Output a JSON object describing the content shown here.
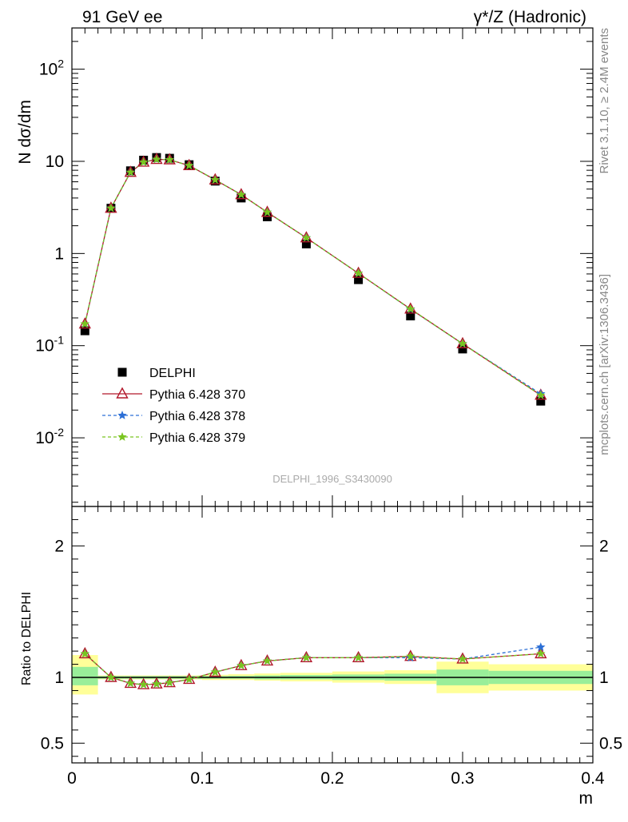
{
  "header": {
    "left": "91 GeV ee",
    "right": "γ*/Z (Hadronic)"
  },
  "side_text": {
    "upper": "Rivet 3.1.10, ≥ 2.4M events",
    "lower": "mcplots.cern.ch [arXiv:1306.3436]"
  },
  "watermark": "DELPHI_1996_S3430090",
  "chart_data": [
    {
      "type": "scatter",
      "panel": "main",
      "ylabel": "N dσ/dm",
      "yscale": "log",
      "xlim": [
        0,
        0.4
      ],
      "ylim": [
        0.0018,
        280
      ],
      "ytick_labels": [
        "10^-2",
        "10^-1",
        "1",
        "10",
        "10^2"
      ],
      "legend_position": "center-left",
      "x": [
        0.01,
        0.03,
        0.045,
        0.055,
        0.065,
        0.075,
        0.09,
        0.11,
        0.13,
        0.15,
        0.18,
        0.22,
        0.26,
        0.3,
        0.36
      ],
      "series": [
        {
          "name": "DELPHI",
          "marker": "square",
          "color": "#000000",
          "values": [
            0.145,
            3.1,
            7.9,
            10.3,
            11.0,
            10.8,
            9.2,
            6.1,
            4.0,
            2.5,
            1.27,
            0.52,
            0.21,
            0.092,
            0.025
          ]
        },
        {
          "name": "Pythia 6.428 370",
          "marker": "triangle",
          "line": "solid",
          "color": "#b2182b",
          "values": [
            0.172,
            3.1,
            7.6,
            9.8,
            10.5,
            10.4,
            9.0,
            6.3,
            4.35,
            2.8,
            1.48,
            0.61,
            0.25,
            0.105,
            0.029
          ]
        },
        {
          "name": "Pythia 6.428 378",
          "marker": "star",
          "line": "dashed",
          "color": "#2c6fd6",
          "values": [
            0.172,
            3.1,
            7.6,
            9.8,
            10.5,
            10.4,
            9.0,
            6.3,
            4.35,
            2.8,
            1.48,
            0.61,
            0.248,
            0.105,
            0.03
          ]
        },
        {
          "name": "Pythia 6.428 379",
          "marker": "star",
          "line": "dashed",
          "color": "#7ac520",
          "values": [
            0.172,
            3.1,
            7.6,
            9.8,
            10.5,
            10.4,
            9.0,
            6.3,
            4.35,
            2.8,
            1.48,
            0.61,
            0.25,
            0.105,
            0.029
          ]
        }
      ]
    },
    {
      "type": "scatter",
      "panel": "ratio",
      "ylabel": "Ratio to DELPHI",
      "xlabel": "m",
      "xlim": [
        0,
        0.4
      ],
      "ylim": [
        0.35,
        2.3
      ],
      "xtick_labels": [
        "0",
        "0.1",
        "0.2",
        "0.3",
        "0.4"
      ],
      "ytick_labels": [
        "0.5",
        "1",
        "2"
      ],
      "ytick_values": [
        0.5,
        1,
        2
      ],
      "x": [
        0.01,
        0.03,
        0.045,
        0.055,
        0.065,
        0.075,
        0.09,
        0.11,
        0.13,
        0.15,
        0.18,
        0.22,
        0.26,
        0.3,
        0.36
      ],
      "bands": [
        {
          "x0": 0.0,
          "x1": 0.02,
          "yellow": [
            0.87,
            1.17
          ],
          "green": [
            0.94,
            1.08
          ]
        },
        {
          "x0": 0.02,
          "x1": 0.04,
          "yellow": [
            0.985,
            1.015
          ],
          "green": [
            0.99,
            1.01
          ]
        },
        {
          "x0": 0.04,
          "x1": 0.1,
          "yellow": [
            0.985,
            1.015
          ],
          "green": [
            0.99,
            1.01
          ]
        },
        {
          "x0": 0.1,
          "x1": 0.12,
          "yellow": [
            0.98,
            1.02
          ],
          "green": [
            0.99,
            1.01
          ]
        },
        {
          "x0": 0.12,
          "x1": 0.14,
          "yellow": [
            0.98,
            1.025
          ],
          "green": [
            0.99,
            1.012
          ]
        },
        {
          "x0": 0.14,
          "x1": 0.16,
          "yellow": [
            0.975,
            1.03
          ],
          "green": [
            0.985,
            1.015
          ]
        },
        {
          "x0": 0.16,
          "x1": 0.2,
          "yellow": [
            0.97,
            1.035
          ],
          "green": [
            0.985,
            1.018
          ]
        },
        {
          "x0": 0.2,
          "x1": 0.24,
          "yellow": [
            0.96,
            1.045
          ],
          "green": [
            0.98,
            1.022
          ]
        },
        {
          "x0": 0.24,
          "x1": 0.28,
          "yellow": [
            0.95,
            1.055
          ],
          "green": [
            0.975,
            1.028
          ]
        },
        {
          "x0": 0.28,
          "x1": 0.32,
          "yellow": [
            0.88,
            1.12
          ],
          "green": [
            0.94,
            1.06
          ]
        },
        {
          "x0": 0.32,
          "x1": 0.4,
          "yellow": [
            0.9,
            1.1
          ],
          "green": [
            0.95,
            1.05
          ]
        }
      ],
      "series": [
        {
          "name": "Pythia 6.428 370",
          "marker": "triangle",
          "line": "solid",
          "color": "#b2182b",
          "values": [
            1.18,
            1.0,
            0.955,
            0.945,
            0.95,
            0.96,
            0.985,
            1.04,
            1.09,
            1.125,
            1.15,
            1.15,
            1.16,
            1.14,
            1.18
          ]
        },
        {
          "name": "Pythia 6.428 378",
          "marker": "star",
          "line": "dashed",
          "color": "#2c6fd6",
          "values": [
            1.18,
            1.0,
            0.955,
            0.945,
            0.95,
            0.96,
            0.985,
            1.04,
            1.09,
            1.125,
            1.15,
            1.15,
            1.15,
            1.14,
            1.23
          ]
        },
        {
          "name": "Pythia 6.428 379",
          "marker": "star",
          "line": "dashed",
          "color": "#7ac520",
          "values": [
            1.18,
            1.0,
            0.955,
            0.945,
            0.95,
            0.96,
            0.985,
            1.04,
            1.09,
            1.125,
            1.15,
            1.15,
            1.16,
            1.14,
            1.18
          ]
        }
      ]
    }
  ]
}
